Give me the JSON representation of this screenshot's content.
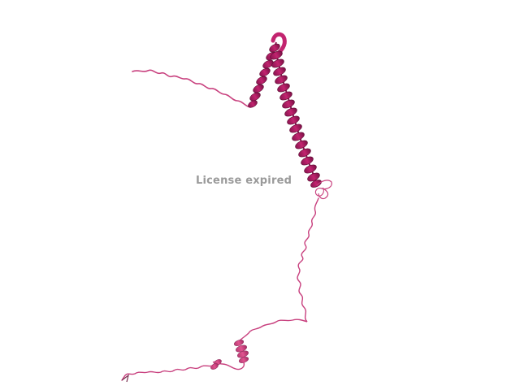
{
  "watermark": {
    "text": "License expired"
  },
  "colors": {
    "background": "#ffffff",
    "helix_dark": "#8a1450",
    "helix_mid": "#c2246f",
    "helix_light": "#e0548f",
    "coil": "#c8407e",
    "coil_lower": "#d65f94",
    "watermark_text": "#9a9a9a"
  }
}
